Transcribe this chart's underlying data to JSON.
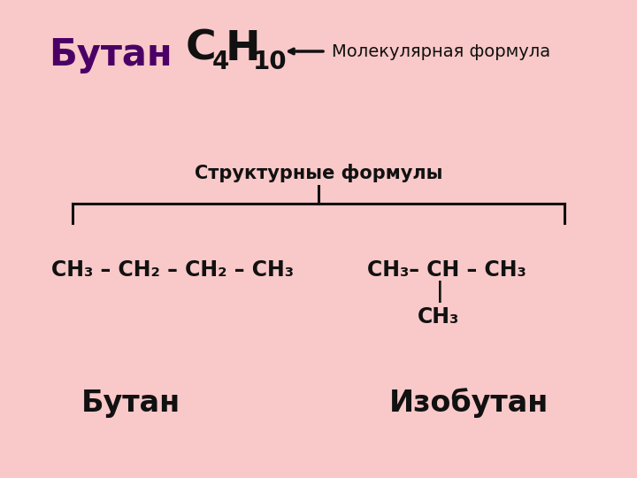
{
  "bg_color": "#f9c8c8",
  "title_butan": "Бутан",
  "title_butan_color": "#4b0066",
  "molecular_formula_label": "Молекулярная формула",
  "structural_label": "Структурные формулы",
  "name_left": "Бутан",
  "name_right": "Изобутан",
  "text_color": "#111111",
  "arrow_color": "#111111"
}
